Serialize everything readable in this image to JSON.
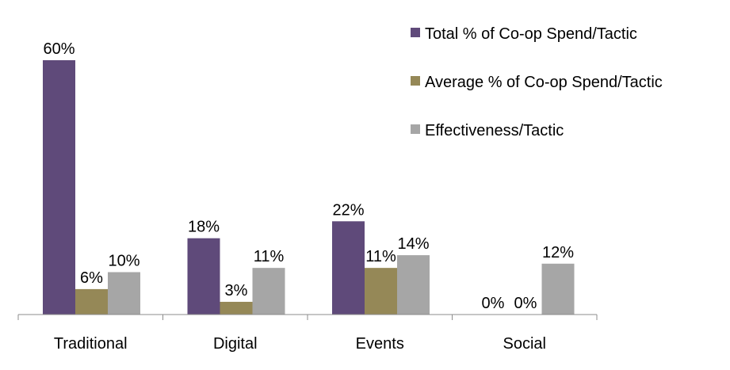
{
  "chart_data": {
    "type": "bar",
    "categories": [
      "Traditional",
      "Digital",
      "Events",
      "Social"
    ],
    "series": [
      {
        "name": "Total % of Co-op Spend/Tactic",
        "values": [
          60,
          18,
          22,
          0
        ],
        "labels": [
          "60%",
          "18%",
          "22%",
          "0%"
        ],
        "color": "#5f4a7a"
      },
      {
        "name": "Average % of Co-op Spend/Tactic",
        "values": [
          6,
          3,
          11,
          0
        ],
        "labels": [
          "6%",
          "3%",
          "11%",
          "0%"
        ],
        "color": "#958857"
      },
      {
        "name": "Effectiveness/Tactic",
        "values": [
          10,
          11,
          14,
          12
        ],
        "labels": [
          "10%",
          "11%",
          "14%",
          "12%"
        ],
        "color": "#a6a6a6"
      }
    ],
    "ylim": [
      0,
      60
    ],
    "unit": "%",
    "grid": false,
    "legend_position": "top-right"
  }
}
